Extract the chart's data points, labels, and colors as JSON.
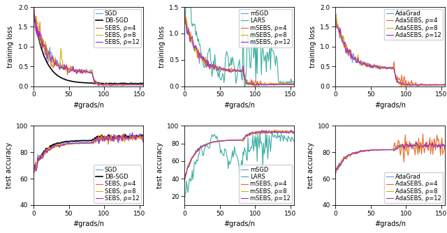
{
  "subplots": [
    {
      "row": 0,
      "col": 0,
      "ylabel": "training loss",
      "xlabel": "#grads/n",
      "ylim": [
        0,
        2
      ],
      "xlim": [
        0,
        155
      ],
      "yticks": [
        0,
        0.5,
        1.0,
        1.5,
        2.0
      ],
      "xticks": [
        0,
        50,
        100,
        150
      ],
      "legend": [
        "SGD",
        "DB-SGD",
        "SEBS, ρ=4",
        "SEBS, ρ=8",
        "SEBS, ρ=12"
      ],
      "colors": [
        "#5599ee",
        "#000000",
        "#ee6622",
        "#ddaa00",
        "#aa22cc"
      ],
      "linewidths": [
        0.8,
        1.2,
        0.8,
        0.8,
        0.8
      ]
    },
    {
      "row": 0,
      "col": 1,
      "ylabel": "training loss",
      "xlabel": "#grads/n",
      "ylim": [
        0,
        1.5
      ],
      "xlim": [
        0,
        155
      ],
      "yticks": [
        0,
        0.5,
        1.0,
        1.5
      ],
      "xticks": [
        0,
        50,
        100,
        150
      ],
      "legend": [
        "mSGD",
        "LARS",
        "mSEBS, ρ=4",
        "mSEBS, ρ=8",
        "mSEBS, ρ=12"
      ],
      "colors": [
        "#5599ee",
        "#3aada0",
        "#ee6622",
        "#ddaa00",
        "#aa22cc"
      ],
      "linewidths": [
        0.8,
        0.8,
        0.8,
        0.8,
        0.8
      ]
    },
    {
      "row": 0,
      "col": 2,
      "ylabel": "training loss",
      "xlabel": "#grads/n",
      "ylim": [
        0,
        2
      ],
      "xlim": [
        0,
        155
      ],
      "yticks": [
        0,
        0.5,
        1.0,
        1.5,
        2.0
      ],
      "xticks": [
        0,
        50,
        100,
        150
      ],
      "legend": [
        "AdaGrad",
        "AdaSEBS, ρ=4",
        "AdaSEBS, ρ=8",
        "AdaSEBS, ρ=12"
      ],
      "colors": [
        "#5599ee",
        "#ee6622",
        "#ddaa00",
        "#aa22cc"
      ],
      "linewidths": [
        0.8,
        0.8,
        0.8,
        0.8
      ]
    },
    {
      "row": 1,
      "col": 0,
      "ylabel": "test accuracy",
      "xlabel": "#grads/n",
      "ylim": [
        40,
        100
      ],
      "xlim": [
        0,
        155
      ],
      "yticks": [
        40,
        60,
        80,
        100
      ],
      "xticks": [
        0,
        50,
        100,
        150
      ],
      "legend": [
        "SGD",
        "DB-SGD",
        "SEBS, ρ=4",
        "SEBS, ρ=8",
        "SEBS, ρ=12"
      ],
      "colors": [
        "#5599ee",
        "#000000",
        "#ee6622",
        "#ddaa00",
        "#aa22cc"
      ],
      "linewidths": [
        0.8,
        1.2,
        0.8,
        0.8,
        0.8
      ],
      "legend_loc": "lower right"
    },
    {
      "row": 1,
      "col": 1,
      "ylabel": "test accuracy",
      "xlabel": "#grads/n",
      "ylim": [
        10,
        100
      ],
      "xlim": [
        0,
        155
      ],
      "yticks": [
        20,
        40,
        60,
        80,
        100
      ],
      "xticks": [
        0,
        50,
        100,
        150
      ],
      "legend": [
        "mSGD",
        "LARS",
        "mSEBS, ρ=4",
        "mSEBS, ρ=8",
        "mSEBS, ρ=12"
      ],
      "colors": [
        "#5599ee",
        "#3aada0",
        "#ee6622",
        "#ddaa00",
        "#aa22cc"
      ],
      "linewidths": [
        0.8,
        0.8,
        0.8,
        0.8,
        0.8
      ],
      "legend_loc": "lower right"
    },
    {
      "row": 1,
      "col": 2,
      "ylabel": "test accuracy",
      "xlabel": "#grads/n",
      "ylim": [
        40,
        100
      ],
      "xlim": [
        0,
        155
      ],
      "yticks": [
        40,
        60,
        80,
        100
      ],
      "xticks": [
        0,
        50,
        100,
        150
      ],
      "legend": [
        "AdaGrad",
        "AdaSEBS, ρ=4",
        "AdaSEBS, ρ=8",
        "AdaSEBS, ρ=12"
      ],
      "colors": [
        "#5599ee",
        "#ee6622",
        "#ddaa00",
        "#aa22cc"
      ],
      "linewidths": [
        0.8,
        0.8,
        0.8,
        0.8
      ],
      "legend_loc": "lower right"
    }
  ],
  "figsize": [
    6.4,
    3.34
  ],
  "dpi": 100,
  "drop_step": 83
}
